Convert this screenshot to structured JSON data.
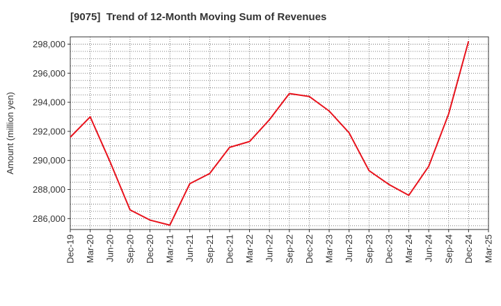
{
  "chart_data": {
    "type": "line",
    "title": "[9075]  Trend of 12-Month Moving Sum of Revenues",
    "xlabel": "",
    "ylabel": "Amount (million yen)",
    "x_ticks": [
      "Dec-19",
      "Mar-20",
      "Jun-20",
      "Sep-20",
      "Dec-20",
      "Mar-21",
      "Jun-21",
      "Sep-21",
      "Dec-21",
      "Mar-22",
      "Jun-22",
      "Sep-22",
      "Dec-22",
      "Mar-23",
      "Jun-23",
      "Sep-23",
      "Dec-23",
      "Mar-24",
      "Jun-24",
      "Sep-24",
      "Dec-24",
      "Mar-25"
    ],
    "y_ticks": [
      286000,
      288000,
      290000,
      292000,
      294000,
      296000,
      298000
    ],
    "y_tick_labels": [
      "286,000",
      "288,000",
      "290,000",
      "292,000",
      "294,000",
      "296,000",
      "298,000"
    ],
    "ylim": [
      285250,
      298500
    ],
    "grid": true,
    "grid_style": "dotted",
    "legend": "none",
    "series": [
      {
        "color": "#e8121c",
        "x": [
          "Dec-19",
          "Mar-20",
          "Jun-20",
          "Sep-20",
          "Dec-20",
          "Mar-21",
          "Jun-21",
          "Sep-21",
          "Dec-21",
          "Mar-22",
          "Jun-22",
          "Sep-22",
          "Dec-22",
          "Mar-23",
          "Jun-23",
          "Sep-23",
          "Dec-23",
          "Mar-24",
          "Jun-24",
          "Sep-24",
          "Dec-24"
        ],
        "values": [
          291600,
          293000,
          289900,
          286600,
          285900,
          285550,
          288400,
          289100,
          290900,
          291300,
          292800,
          294600,
          294400,
          293400,
          291900,
          289300,
          288350,
          287600,
          289600,
          293200,
          298200
        ]
      }
    ]
  }
}
